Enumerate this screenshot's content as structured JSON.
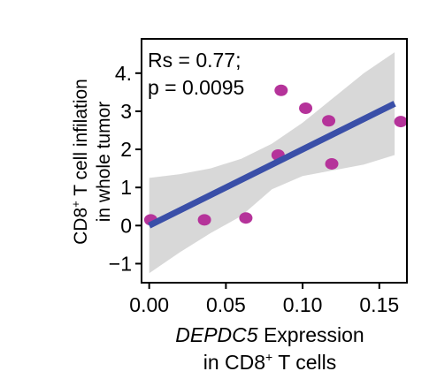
{
  "chart_data": {
    "type": "scatter",
    "title": "",
    "annotation_line1": "Rs = 0.77;",
    "annotation_line2": "p = 0.0095",
    "xlabel_italic": "DEPDC5",
    "xlabel_rest": " Expression",
    "xlabel_line2_pre": "in CD8",
    "xlabel_line2_sup": "+",
    "xlabel_line2_post": " T cells",
    "ylabel_line1_pre": "CD8",
    "ylabel_line1_sup": "+",
    "ylabel_line1_post": " T cell infilation",
    "ylabel_line2": "in whole tumor",
    "xlim": [
      -0.005,
      0.168
    ],
    "ylim": [
      -1.5,
      4.9
    ],
    "xticks": [
      0.0,
      0.05,
      0.1,
      0.15
    ],
    "xtick_labels": [
      "0.00",
      "0.05",
      "0.10",
      "0.15"
    ],
    "yticks": [
      -1,
      0,
      1,
      2,
      3,
      4
    ],
    "ytick_labels": [
      "−1",
      "0",
      "1",
      "2",
      "3",
      "4."
    ],
    "points": [
      {
        "x": 0.001,
        "y": 0.15
      },
      {
        "x": 0.036,
        "y": 0.15
      },
      {
        "x": 0.063,
        "y": 0.2
      },
      {
        "x": 0.084,
        "y": 1.85
      },
      {
        "x": 0.086,
        "y": 3.55
      },
      {
        "x": 0.102,
        "y": 3.08
      },
      {
        "x": 0.117,
        "y": 2.75
      },
      {
        "x": 0.119,
        "y": 1.62
      },
      {
        "x": 0.164,
        "y": 2.73
      }
    ],
    "fit_line": {
      "x": [
        0.0,
        0.16
      ],
      "y": [
        0.0,
        3.2
      ]
    },
    "confidence_band": {
      "x": [
        0.0,
        0.02,
        0.04,
        0.06,
        0.08,
        0.1,
        0.12,
        0.14,
        0.16
      ],
      "upper": [
        1.25,
        1.35,
        1.5,
        1.75,
        2.15,
        2.7,
        3.35,
        4.0,
        4.55
      ],
      "lower": [
        -1.25,
        -0.7,
        -0.2,
        0.25,
        0.95,
        1.3,
        1.45,
        1.6,
        1.85
      ]
    },
    "colors": {
      "points": "#b5339a",
      "fit_line": "#3a4fa8",
      "band": "#d6d6d6",
      "axes": "#000000"
    },
    "grid": false,
    "legend": "none"
  }
}
